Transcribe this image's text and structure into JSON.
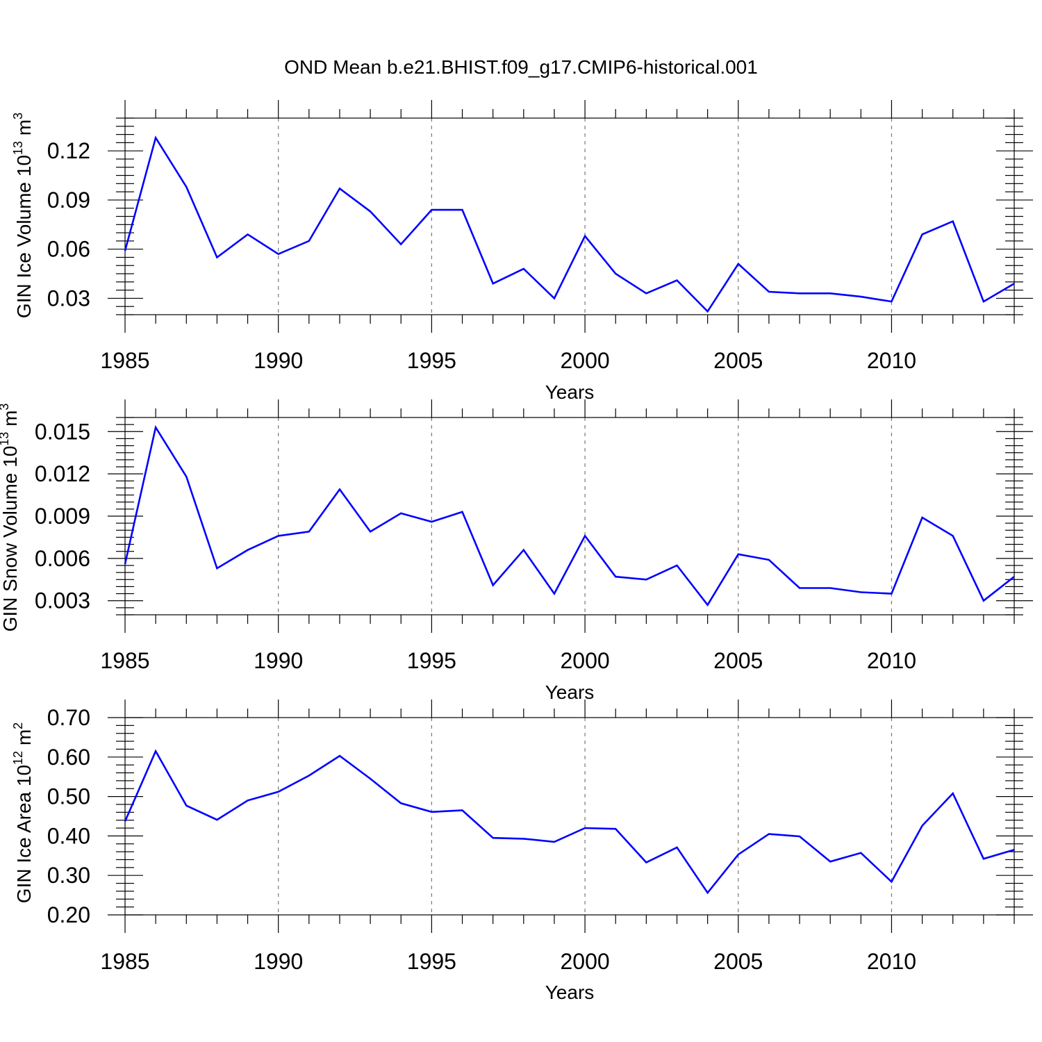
{
  "chart_data": {
    "title": "OND Mean b.e21.BHIST.f09_g17.CMIP6-historical.001",
    "line_color": "#0000ff",
    "x_range": [
      1985,
      2014
    ],
    "x_ticks": [
      1985,
      1990,
      1995,
      2000,
      2005,
      2010
    ],
    "x_grid": [
      1990,
      1995,
      2000,
      2005,
      2010
    ],
    "panels": [
      {
        "type": "line",
        "xlabel": "Years",
        "ylabel": "GIN Ice Volume 10",
        "ylabel_exp": "13",
        "ylabel_unit": " m",
        "ylabel_unit_exp": "3",
        "ylim": [
          0.02,
          0.14
        ],
        "y_ticks": [
          0.03,
          0.06,
          0.09,
          0.12
        ],
        "y_tick_labels": [
          "0.03",
          "0.06",
          "0.09",
          "0.12"
        ],
        "y_minor_step": 0.005,
        "x": [
          1985,
          1986,
          1987,
          1988,
          1989,
          1990,
          1991,
          1992,
          1993,
          1994,
          1995,
          1996,
          1997,
          1998,
          1999,
          2000,
          2001,
          2002,
          2003,
          2004,
          2005,
          2006,
          2007,
          2008,
          2009,
          2010,
          2011,
          2012,
          2013,
          2014
        ],
        "values": [
          0.059,
          0.128,
          0.098,
          0.055,
          0.069,
          0.057,
          0.065,
          0.097,
          0.083,
          0.063,
          0.084,
          0.084,
          0.039,
          0.048,
          0.03,
          0.068,
          0.045,
          0.033,
          0.041,
          0.022,
          0.051,
          0.034,
          0.033,
          0.033,
          0.031,
          0.028,
          0.069,
          0.077,
          0.028,
          0.039
        ]
      },
      {
        "type": "line",
        "xlabel": "Years",
        "ylabel": "GIN Snow Volume 10",
        "ylabel_exp": "13",
        "ylabel_unit": " m",
        "ylabel_unit_exp": "3",
        "ylim": [
          0.002,
          0.016
        ],
        "y_ticks": [
          0.003,
          0.006,
          0.009,
          0.012,
          0.015
        ],
        "y_tick_labels": [
          "0.003",
          "0.006",
          "0.009",
          "0.012",
          "0.015"
        ],
        "y_minor_step": 0.0005,
        "x": [
          1985,
          1986,
          1987,
          1988,
          1989,
          1990,
          1991,
          1992,
          1993,
          1994,
          1995,
          1996,
          1997,
          1998,
          1999,
          2000,
          2001,
          2002,
          2003,
          2004,
          2005,
          2006,
          2007,
          2008,
          2009,
          2010,
          2011,
          2012,
          2013,
          2014
        ],
        "values": [
          0.0056,
          0.0153,
          0.0118,
          0.0053,
          0.0066,
          0.0076,
          0.0079,
          0.0109,
          0.0079,
          0.0092,
          0.0086,
          0.0093,
          0.0041,
          0.0066,
          0.0035,
          0.0076,
          0.0047,
          0.0045,
          0.0055,
          0.0027,
          0.0063,
          0.0059,
          0.0039,
          0.0039,
          0.0036,
          0.0035,
          0.0089,
          0.0076,
          0.003,
          0.0047
        ]
      },
      {
        "type": "line",
        "xlabel": "Years",
        "ylabel": "GIN Ice Area 10",
        "ylabel_exp": "12",
        "ylabel_unit": " m",
        "ylabel_unit_exp": "2",
        "ylim": [
          0.2,
          0.7
        ],
        "y_ticks": [
          0.2,
          0.3,
          0.4,
          0.5,
          0.6,
          0.7
        ],
        "y_tick_labels": [
          "0.20",
          "0.30",
          "0.40",
          "0.50",
          "0.60",
          "0.70"
        ],
        "y_minor_step": 0.02,
        "x": [
          1985,
          1986,
          1987,
          1988,
          1989,
          1990,
          1991,
          1992,
          1993,
          1994,
          1995,
          1996,
          1997,
          1998,
          1999,
          2000,
          2001,
          2002,
          2003,
          2004,
          2005,
          2006,
          2007,
          2008,
          2009,
          2010,
          2011,
          2012,
          2013,
          2014
        ],
        "values": [
          0.437,
          0.615,
          0.477,
          0.441,
          0.49,
          0.512,
          0.553,
          0.603,
          0.545,
          0.483,
          0.461,
          0.465,
          0.395,
          0.393,
          0.385,
          0.42,
          0.418,
          0.333,
          0.371,
          0.256,
          0.353,
          0.405,
          0.399,
          0.335,
          0.357,
          0.284,
          0.426,
          0.508,
          0.342,
          0.365
        ]
      }
    ]
  }
}
